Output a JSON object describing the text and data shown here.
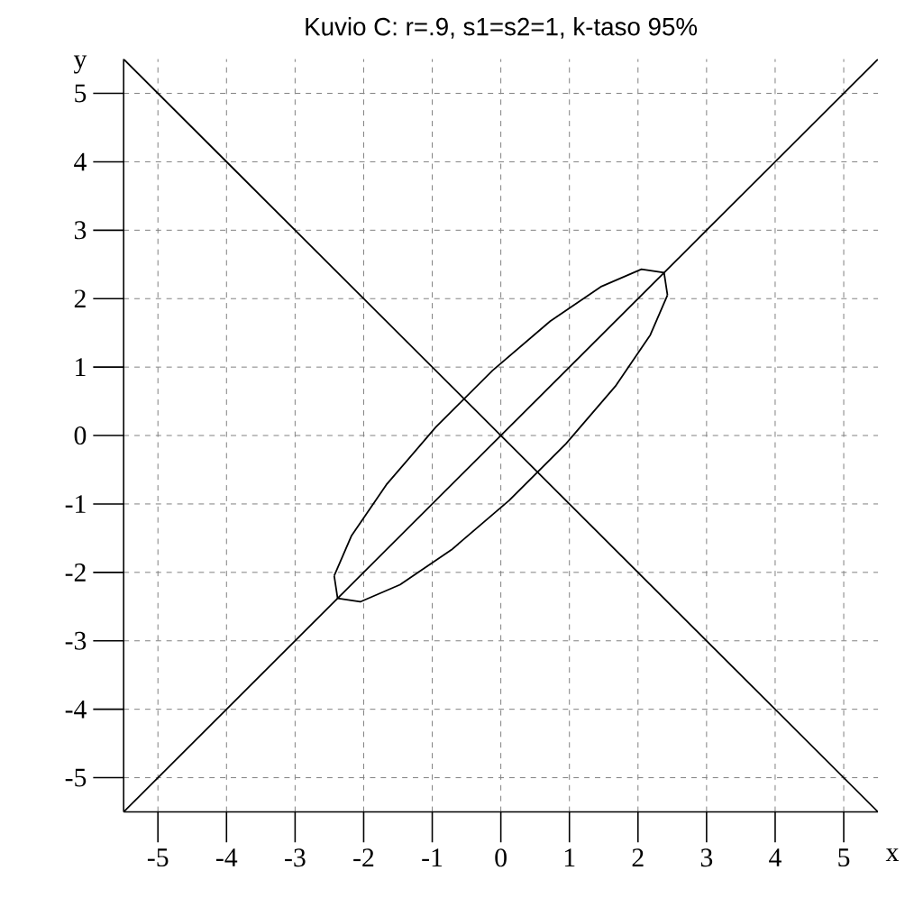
{
  "chart_data": {
    "type": "line",
    "title": "Kuvio C: r=.9, s1=s2=1, k-taso 95%",
    "xlabel": "x",
    "ylabel": "y",
    "xlim": [
      -5.5,
      5.5
    ],
    "ylim": [
      -5.5,
      5.5
    ],
    "xticks": [
      -5,
      -4,
      -3,
      -2,
      -1,
      0,
      1,
      2,
      3,
      4,
      5
    ],
    "yticks": [
      -5,
      -4,
      -3,
      -2,
      -1,
      0,
      1,
      2,
      3,
      4,
      5
    ],
    "grid": true,
    "marker": "none",
    "line_style": "solid",
    "series": [
      {
        "color": "#000000",
        "x": [
          -2.43,
          -2.18,
          -1.67,
          -0.95,
          -0.12,
          0.72,
          1.47,
          2.05,
          2.38,
          2.43
        ],
        "values": [
          -2.05,
          -1.47,
          -0.72,
          0.12,
          0.95,
          1.67,
          2.18,
          2.43,
          2.38,
          2.05
        ]
      },
      {
        "color": "#000000",
        "x": [
          -2.43,
          -2.38,
          -2.05,
          -1.47,
          -0.72,
          0.12,
          0.95,
          1.67,
          2.18,
          2.43
        ],
        "values": [
          -2.05,
          -2.38,
          -2.43,
          -2.18,
          -1.67,
          -0.95,
          -0.12,
          0.72,
          1.47,
          2.05
        ]
      },
      {
        "color": "#000000",
        "x": [
          -5.5,
          5.5
        ],
        "values": [
          -5.5,
          5.5
        ]
      },
      {
        "color": "#000000",
        "x": [
          -5.5,
          5.5
        ],
        "values": [
          5.5,
          -5.5
        ]
      }
    ]
  }
}
